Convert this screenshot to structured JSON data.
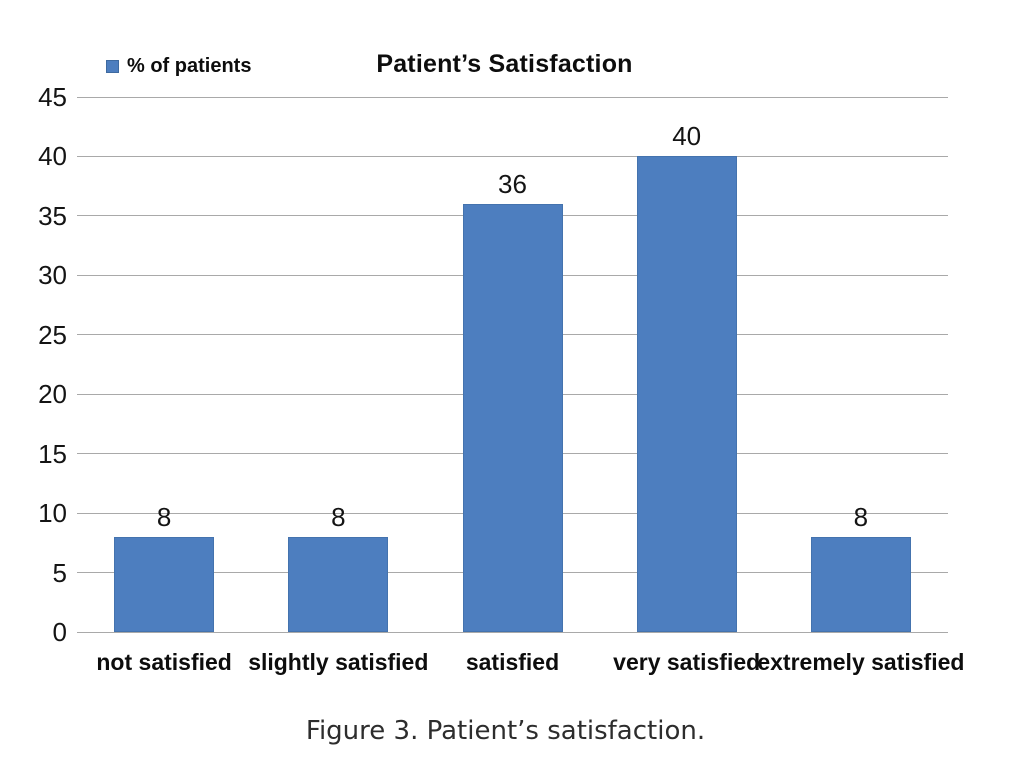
{
  "figure": {
    "caption": "Figure 3. Patient’s satisfaction."
  },
  "chart_data": {
    "type": "bar",
    "title": "Patient’s Satisfaction",
    "legend": [
      "% of patients"
    ],
    "legend_position": "top-left",
    "categories": [
      "not satisfied",
      "slightly satisfied",
      "satisfied",
      "very satisfied",
      "extremely satisfied"
    ],
    "values": [
      8,
      8,
      36,
      40,
      8
    ],
    "data_labels": [
      8,
      8,
      36,
      40,
      8
    ],
    "xlabel": "",
    "ylabel": "",
    "ylim": [
      0,
      45
    ],
    "yticks": [
      0,
      5,
      10,
      15,
      20,
      25,
      30,
      35,
      40,
      45
    ],
    "grid": true,
    "colors": {
      "bar_fill": "#4d7ebf",
      "bar_border": "#3e6aa0",
      "gridline": "#a9a9a9",
      "chart_text": "#0d0d0d",
      "caption_text": "#2d2d2d"
    }
  }
}
